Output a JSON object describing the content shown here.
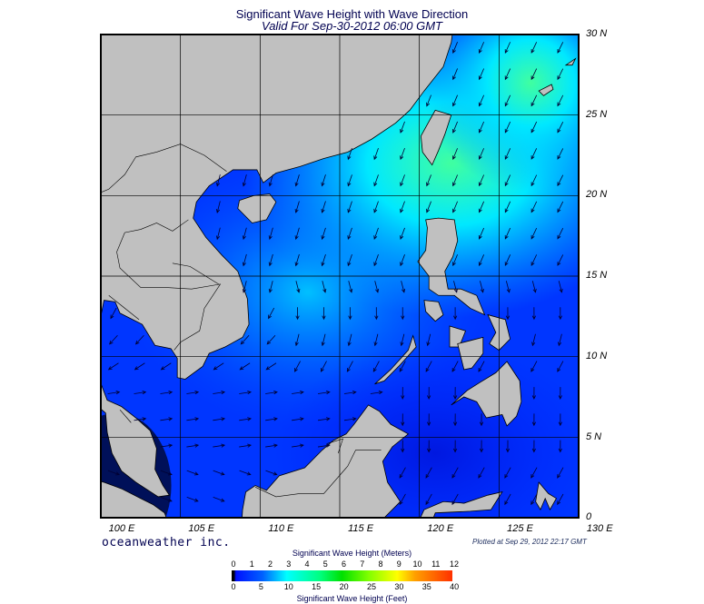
{
  "title": "Significant Wave Height with Wave Direction",
  "subtitle": "Valid For Sep-30-2012 06:00 GMT",
  "brand": "oceanweather inc.",
  "plotted": "Plotted at Sep 29, 2012 22:17 GMT",
  "map": {
    "region": "South China Sea",
    "lon_range": [
      100,
      130
    ],
    "lat_range": [
      0,
      30
    ],
    "lat_labels": [
      "30 N",
      "25 N",
      "20 N",
      "15 N",
      "10 N",
      "5 N",
      "0"
    ],
    "lon_labels": [
      "100 E",
      "105 E",
      "110 E",
      "115 E",
      "120 E",
      "125 E",
      "130 E"
    ],
    "land_color": "#c0c0c0",
    "frame_color": "#000000"
  },
  "colorbar": {
    "title_top": "Significant Wave Height (Meters)",
    "title_bottom": "Significant Wave Height (Feet)",
    "meters": [
      "0",
      "1",
      "2",
      "3",
      "4",
      "5",
      "6",
      "7",
      "8",
      "9",
      "10",
      "11",
      "12"
    ],
    "feet": [
      "0",
      "5",
      "10",
      "15",
      "20",
      "25",
      "30",
      "35",
      "40"
    ]
  }
}
